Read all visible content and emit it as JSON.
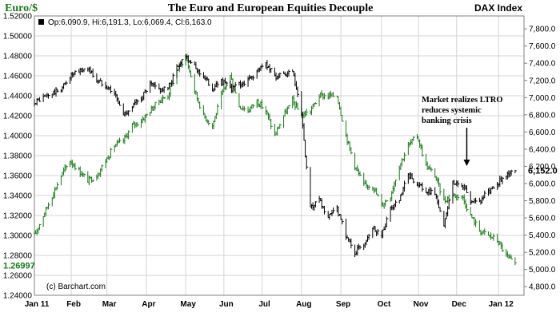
{
  "chart_data": {
    "type": "line",
    "title": "The Euro and European Equities Decouple",
    "left_axis_label": "Euro/$",
    "right_axis_label": "DAX Index",
    "ohlc_readout": "Op:6,090.9, Hi:6,191.3, Lo:6,069.4, Cl:6,163.0",
    "credit": "(c) Barchart.com",
    "annotation": {
      "lines": [
        "Market realizes LTRO",
        "reduces systemic",
        "banking  crisis"
      ],
      "arrow_date": "2011-12-09"
    },
    "x_range": [
      "2011-01-03",
      "2012-01-23"
    ],
    "x_ticks": [
      {
        "date": "2011-01-03",
        "label": "Jan 11"
      },
      {
        "date": "2011-02-01",
        "label": "Feb"
      },
      {
        "date": "2011-03-01",
        "label": "Mar"
      },
      {
        "date": "2011-04-01",
        "label": "Apr"
      },
      {
        "date": "2011-05-02",
        "label": "May"
      },
      {
        "date": "2011-06-01",
        "label": "Jun"
      },
      {
        "date": "2011-07-01",
        "label": "Jul"
      },
      {
        "date": "2011-08-01",
        "label": "Aug"
      },
      {
        "date": "2011-09-01",
        "label": "Sep"
      },
      {
        "date": "2011-10-03",
        "label": "Oct"
      },
      {
        "date": "2011-11-01",
        "label": "Nov"
      },
      {
        "date": "2011-12-01",
        "label": "Dec"
      },
      {
        "date": "2012-01-03",
        "label": "Jan 12"
      }
    ],
    "left_axis": {
      "range": [
        1.24,
        1.52
      ],
      "ticks": [
        "1.24000",
        "1.26000",
        "1.28000",
        "1.30000",
        "1.32000",
        "1.34000",
        "1.36000",
        "1.38000",
        "1.40000",
        "1.42000",
        "1.44000",
        "1.46000",
        "1.48000",
        "1.50000",
        "1.52000"
      ],
      "last_value_label": "1.26997"
    },
    "right_axis": {
      "range": [
        4700,
        7950
      ],
      "ticks": [
        "4,800.0",
        "5,000.0",
        "5,200.0",
        "5,400.0",
        "5,600.0",
        "5,800.0",
        "6,000.0",
        "6,200.0",
        "6,400.0",
        "6,600.0",
        "6,800.0",
        "7,000.0",
        "7,200.0",
        "7,400.0",
        "7,600.0",
        "7,800.0"
      ],
      "last_value_label": "6,152.0"
    },
    "series": [
      {
        "name": "Euro/$",
        "color": "#1a7a1a",
        "axis": "left",
        "points": [
          [
            "2011-01-03",
            1.3
          ],
          [
            "2011-01-10",
            1.32
          ],
          [
            "2011-01-17",
            1.34
          ],
          [
            "2011-01-24",
            1.36
          ],
          [
            "2011-01-31",
            1.375
          ],
          [
            "2011-02-07",
            1.365
          ],
          [
            "2011-02-14",
            1.355
          ],
          [
            "2011-02-21",
            1.36
          ],
          [
            "2011-02-28",
            1.375
          ],
          [
            "2011-03-07",
            1.39
          ],
          [
            "2011-03-14",
            1.395
          ],
          [
            "2011-03-21",
            1.41
          ],
          [
            "2011-03-28",
            1.415
          ],
          [
            "2011-04-04",
            1.425
          ],
          [
            "2011-04-11",
            1.435
          ],
          [
            "2011-04-18",
            1.44
          ],
          [
            "2011-04-25",
            1.465
          ],
          [
            "2011-05-02",
            1.48
          ],
          [
            "2011-05-09",
            1.445
          ],
          [
            "2011-05-16",
            1.42
          ],
          [
            "2011-05-23",
            1.41
          ],
          [
            "2011-05-30",
            1.44
          ],
          [
            "2011-06-06",
            1.46
          ],
          [
            "2011-06-13",
            1.43
          ],
          [
            "2011-06-20",
            1.425
          ],
          [
            "2011-06-27",
            1.435
          ],
          [
            "2011-07-04",
            1.425
          ],
          [
            "2011-07-11",
            1.4
          ],
          [
            "2011-07-18",
            1.42
          ],
          [
            "2011-07-25",
            1.435
          ],
          [
            "2011-08-01",
            1.42
          ],
          [
            "2011-08-08",
            1.425
          ],
          [
            "2011-08-15",
            1.44
          ],
          [
            "2011-08-22",
            1.44
          ],
          [
            "2011-08-29",
            1.44
          ],
          [
            "2011-09-05",
            1.4
          ],
          [
            "2011-09-12",
            1.37
          ],
          [
            "2011-09-19",
            1.35
          ],
          [
            "2011-09-26",
            1.35
          ],
          [
            "2011-10-03",
            1.33
          ],
          [
            "2011-10-10",
            1.34
          ],
          [
            "2011-10-17",
            1.37
          ],
          [
            "2011-10-24",
            1.39
          ],
          [
            "2011-10-31",
            1.4
          ],
          [
            "2011-11-07",
            1.37
          ],
          [
            "2011-11-14",
            1.36
          ],
          [
            "2011-11-21",
            1.335
          ],
          [
            "2011-11-28",
            1.34
          ],
          [
            "2011-12-05",
            1.34
          ],
          [
            "2011-12-12",
            1.32
          ],
          [
            "2011-12-19",
            1.305
          ],
          [
            "2011-12-26",
            1.3
          ],
          [
            "2012-01-02",
            1.295
          ],
          [
            "2012-01-09",
            1.28
          ],
          [
            "2012-01-16",
            1.27
          ]
        ]
      },
      {
        "name": "DAX Index",
        "color": "#000000",
        "axis": "right",
        "points": [
          [
            "2011-01-03",
            6950
          ],
          [
            "2011-01-10",
            7000
          ],
          [
            "2011-01-17",
            7050
          ],
          [
            "2011-01-24",
            7100
          ],
          [
            "2011-01-31",
            7250
          ],
          [
            "2011-02-07",
            7300
          ],
          [
            "2011-02-14",
            7350
          ],
          [
            "2011-02-21",
            7200
          ],
          [
            "2011-02-28",
            7150
          ],
          [
            "2011-03-07",
            7050
          ],
          [
            "2011-03-14",
            6800
          ],
          [
            "2011-03-21",
            6900
          ],
          [
            "2011-03-28",
            7000
          ],
          [
            "2011-04-04",
            7150
          ],
          [
            "2011-04-11",
            7100
          ],
          [
            "2011-04-18",
            7100
          ],
          [
            "2011-04-25",
            7350
          ],
          [
            "2011-05-02",
            7500
          ],
          [
            "2011-05-09",
            7350
          ],
          [
            "2011-05-16",
            7250
          ],
          [
            "2011-05-23",
            7100
          ],
          [
            "2011-05-30",
            7200
          ],
          [
            "2011-06-06",
            7100
          ],
          [
            "2011-06-13",
            7150
          ],
          [
            "2011-06-20",
            7200
          ],
          [
            "2011-06-27",
            7300
          ],
          [
            "2011-07-04",
            7400
          ],
          [
            "2011-07-11",
            7250
          ],
          [
            "2011-07-18",
            7250
          ],
          [
            "2011-07-25",
            7300
          ],
          [
            "2011-08-01",
            6800
          ],
          [
            "2011-08-08",
            5700
          ],
          [
            "2011-08-15",
            5800
          ],
          [
            "2011-08-22",
            5600
          ],
          [
            "2011-08-29",
            5700
          ],
          [
            "2011-09-05",
            5400
          ],
          [
            "2011-09-12",
            5200
          ],
          [
            "2011-09-19",
            5300
          ],
          [
            "2011-09-26",
            5500
          ],
          [
            "2011-10-03",
            5400
          ],
          [
            "2011-10-10",
            5700
          ],
          [
            "2011-10-17",
            5800
          ],
          [
            "2011-10-24",
            6100
          ],
          [
            "2011-10-31",
            6000
          ],
          [
            "2011-11-07",
            5900
          ],
          [
            "2011-11-14",
            5900
          ],
          [
            "2011-11-21",
            5500
          ],
          [
            "2011-11-28",
            6000
          ],
          [
            "2011-12-05",
            6000
          ],
          [
            "2011-12-12",
            5800
          ],
          [
            "2011-12-19",
            5800
          ],
          [
            "2011-12-26",
            5900
          ],
          [
            "2012-01-02",
            6000
          ],
          [
            "2012-01-09",
            6100
          ],
          [
            "2012-01-16",
            6150
          ]
        ]
      }
    ],
    "grid": true
  }
}
